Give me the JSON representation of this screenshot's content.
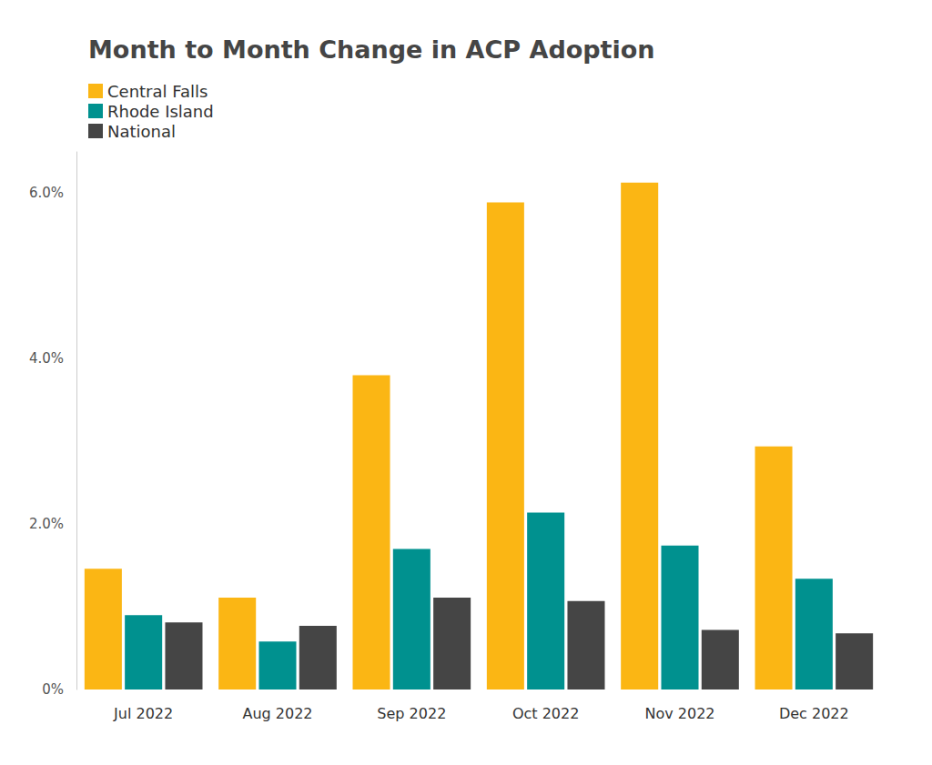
{
  "chart_data": {
    "type": "bar",
    "title": "Month to Month Change in ACP Adoption",
    "categories": [
      "Jul 2022",
      "Aug 2022",
      "Sep 2022",
      "Oct 2022",
      "Nov 2022",
      "Dec 2022"
    ],
    "series": [
      {
        "name": "Central Falls",
        "color": "#fbb614",
        "values": [
          1.46,
          1.11,
          3.8,
          5.89,
          6.13,
          2.94
        ]
      },
      {
        "name": "Rhode Island",
        "color": "#00918f",
        "values": [
          0.9,
          0.58,
          1.7,
          2.14,
          1.74,
          1.34
        ]
      },
      {
        "name": "National",
        "color": "#454545",
        "values": [
          0.81,
          0.77,
          1.11,
          1.07,
          0.72,
          0.68
        ]
      }
    ],
    "ylim": [
      0,
      6.5
    ],
    "yticks": [
      {
        "value": 0,
        "label": "0%"
      },
      {
        "value": 2,
        "label": "2.0%"
      },
      {
        "value": 4,
        "label": "4.0%"
      },
      {
        "value": 6,
        "label": "6.0%"
      }
    ],
    "grid": false,
    "legend": "top-left"
  }
}
